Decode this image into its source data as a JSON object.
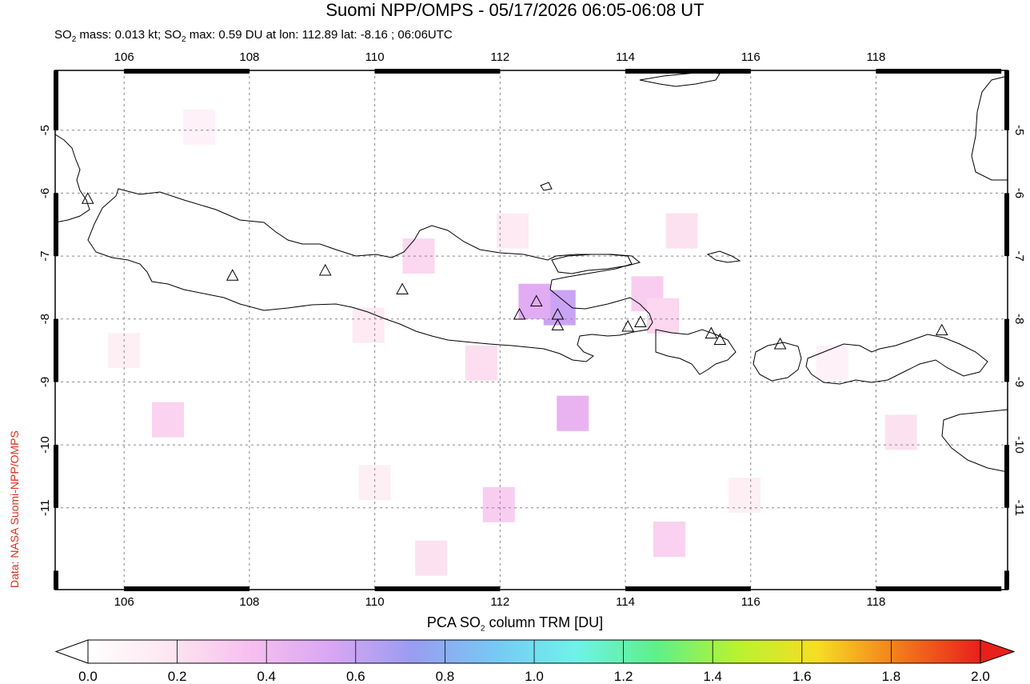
{
  "title": "Suomi NPP/OMPS - 05/17/2026 06:05-06:08 UT",
  "subtitle": {
    "mass_prefix": "SO",
    "mass_sub": "2",
    "mass_text": " mass: 0.013 kt; SO",
    "max_sub": "2",
    "max_text": " max: 0.59 DU at lon: 112.89 lat: -8.16 ; 06:06UTC"
  },
  "credit": "Data: NASA Suomi-NPP/OMPS",
  "colorbar": {
    "label_prefix": "PCA SO",
    "label_sub": "2",
    "label_suffix": " column TRM [DU]",
    "ticks": [
      "0.0",
      "0.2",
      "0.4",
      "0.6",
      "0.8",
      "1.0",
      "1.2",
      "1.4",
      "1.6",
      "1.8",
      "2.0"
    ],
    "colors": [
      "#ffffff",
      "#fde6f0",
      "#f7bff0",
      "#d9a6f4",
      "#9a9cf2",
      "#77c8f5",
      "#6ff2ea",
      "#5ef08a",
      "#b9f22f",
      "#f7dd24",
      "#f27a1c",
      "#e8201c"
    ]
  },
  "map": {
    "lon_ticks": [
      "106",
      "108",
      "110",
      "112",
      "114",
      "116",
      "118"
    ],
    "lat_ticks": [
      "-5",
      "-6",
      "-7",
      "-8",
      "-9",
      "-10",
      "-11"
    ],
    "lon_range": [
      104.9,
      120.1
    ],
    "lat_range": [
      -12.3,
      -4.05
    ],
    "volcanoes": [
      {
        "lon": 105.42,
        "lat": -6.1
      },
      {
        "lon": 107.73,
        "lat": -7.32
      },
      {
        "lon": 109.21,
        "lat": -7.24
      },
      {
        "lon": 110.44,
        "lat": -7.54
      },
      {
        "lon": 112.31,
        "lat": -7.94
      },
      {
        "lon": 112.58,
        "lat": -7.73
      },
      {
        "lon": 112.92,
        "lat": -7.94
      },
      {
        "lon": 112.92,
        "lat": -8.11
      },
      {
        "lon": 114.04,
        "lat": -8.13
      },
      {
        "lon": 114.24,
        "lat": -8.06
      },
      {
        "lon": 115.37,
        "lat": -8.24
      },
      {
        "lon": 115.51,
        "lat": -8.34
      },
      {
        "lon": 116.47,
        "lat": -8.41
      },
      {
        "lon": 119.05,
        "lat": -8.19
      }
    ],
    "so2_cells": [
      {
        "lon": 112.95,
        "lat": -7.82,
        "value": 0.59
      },
      {
        "lon": 112.55,
        "lat": -7.72,
        "value": 0.5
      },
      {
        "lon": 113.16,
        "lat": -9.5,
        "value": 0.45
      },
      {
        "lon": 114.35,
        "lat": -7.6,
        "value": 0.3
      },
      {
        "lon": 114.6,
        "lat": -7.95,
        "value": 0.25
      },
      {
        "lon": 111.98,
        "lat": -10.95,
        "value": 0.3
      },
      {
        "lon": 114.7,
        "lat": -11.5,
        "value": 0.28
      },
      {
        "lon": 106.7,
        "lat": -9.6,
        "value": 0.27
      },
      {
        "lon": 110.7,
        "lat": -7.0,
        "value": 0.25
      },
      {
        "lon": 111.7,
        "lat": -8.7,
        "value": 0.22
      },
      {
        "lon": 110.9,
        "lat": -11.8,
        "value": 0.2
      },
      {
        "lon": 114.9,
        "lat": -6.6,
        "value": 0.2
      },
      {
        "lon": 118.4,
        "lat": -9.8,
        "value": 0.2
      },
      {
        "lon": 112.2,
        "lat": -6.6,
        "value": 0.15
      },
      {
        "lon": 109.9,
        "lat": -8.1,
        "value": 0.15
      },
      {
        "lon": 107.2,
        "lat": -4.95,
        "value": 0.1
      },
      {
        "lon": 110.0,
        "lat": -10.6,
        "value": 0.12
      },
      {
        "lon": 115.9,
        "lat": -10.8,
        "value": 0.12
      },
      {
        "lon": 117.3,
        "lat": -8.7,
        "value": 0.1
      },
      {
        "lon": 106.0,
        "lat": -8.5,
        "value": 0.12
      }
    ]
  }
}
